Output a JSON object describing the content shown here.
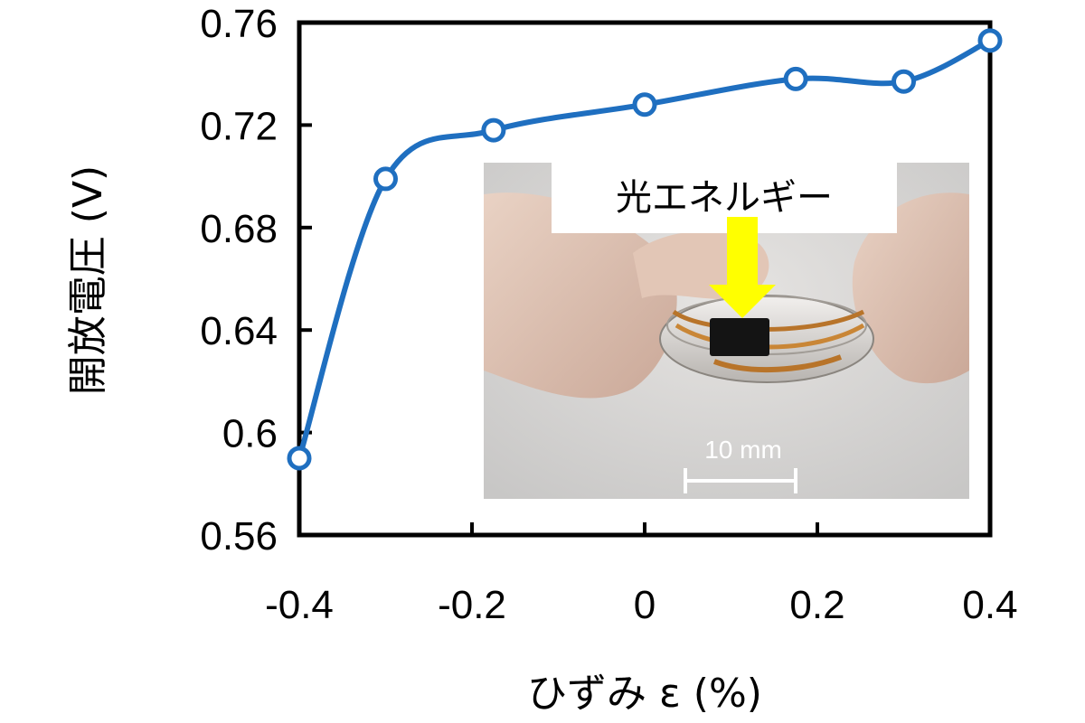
{
  "chart_data": {
    "type": "line",
    "title": "",
    "xlabel": "ひずみ ε (%)",
    "ylabel": "開放電圧 (V)",
    "xlim": [
      -0.4,
      0.4
    ],
    "ylim": [
      0.56,
      0.76
    ],
    "xticks": [
      -0.4,
      -0.2,
      0,
      0.2,
      0.4
    ],
    "xtick_labels": [
      "-0.4",
      "-0.2",
      "0",
      "0.2",
      "0.4"
    ],
    "yticks": [
      0.56,
      0.6,
      0.64,
      0.68,
      0.72,
      0.76
    ],
    "ytick_labels": [
      "0.56",
      "0.6",
      "0.64",
      "0.68",
      "0.72",
      "0.76"
    ],
    "grid": false,
    "series": [
      {
        "color": "#1f6fc0",
        "x": [
          -0.4,
          -0.3,
          -0.175,
          0,
          0.175,
          0.3,
          0.4
        ],
        "y": [
          0.59,
          0.699,
          0.718,
          0.728,
          0.738,
          0.737,
          0.753
        ]
      }
    ],
    "inset_photo": {
      "annotation": "光エネルギー",
      "scale_bar_label": "10 mm",
      "arrow_color": "#ffff00"
    }
  }
}
